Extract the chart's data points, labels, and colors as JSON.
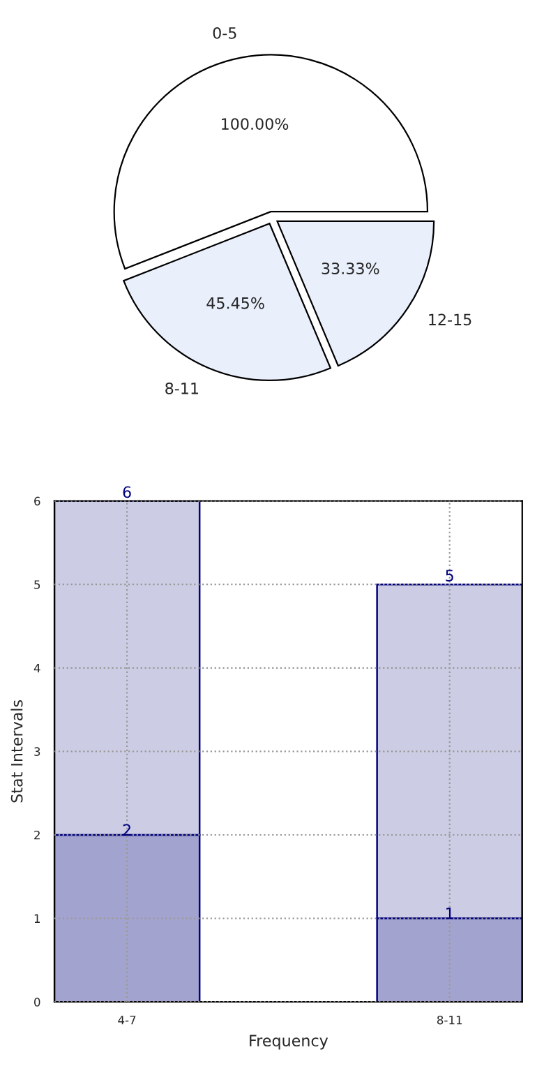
{
  "chart_data": [
    {
      "type": "pie",
      "categories": [
        "0-5",
        "8-11",
        "12-15"
      ],
      "values": [
        100,
        45.45,
        33.33
      ],
      "value_labels": [
        "100.00%",
        "45.45%",
        "33.33%"
      ],
      "colors": [
        "#ffffff",
        "#eaf0fb",
        "#eaf0fb"
      ]
    },
    {
      "type": "bar",
      "stacked": true,
      "categories": [
        "4-7",
        "8-11"
      ],
      "xlabel": "Frequency",
      "ylabel": "Stat Intervals",
      "ylim": [
        0,
        6
      ],
      "yticks": [
        0,
        1,
        2,
        3,
        4,
        5,
        6
      ],
      "grid": true,
      "series": [
        {
          "color": "#a3a3cf",
          "values": [
            2,
            1
          ],
          "value_labels": [
            "2",
            "1"
          ]
        },
        {
          "color": "#ccccE4",
          "values": [
            4,
            4
          ]
        }
      ],
      "totals": [
        "6",
        "5"
      ]
    }
  ]
}
